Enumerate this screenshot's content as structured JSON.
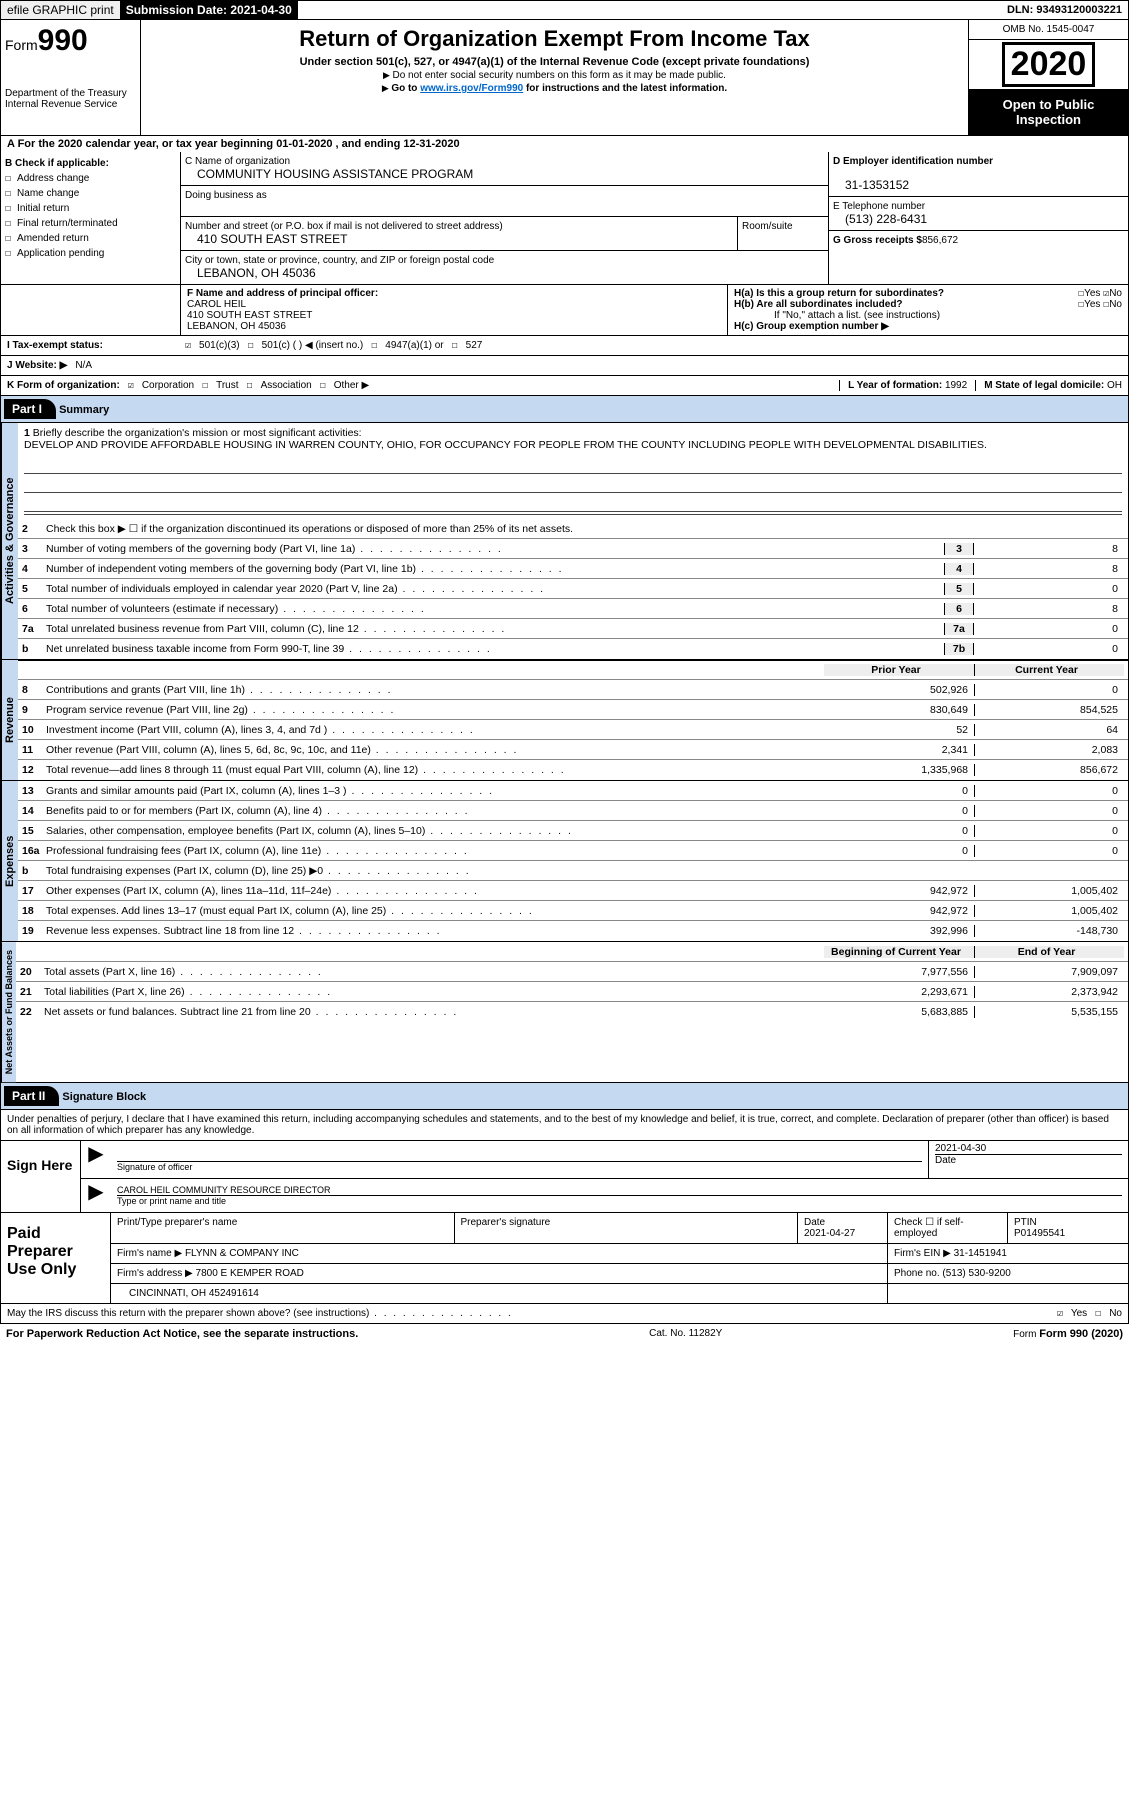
{
  "top": {
    "efile": "efile GRAPHIC print",
    "submission_btn": "Submission Date: 2021-04-30",
    "dln": "DLN: 93493120003221"
  },
  "header": {
    "form_prefix": "Form",
    "form_num": "990",
    "dept": "Department of the Treasury",
    "irs": "Internal Revenue Service",
    "title": "Return of Organization Exempt From Income Tax",
    "sub": "Under section 501(c), 527, or 4947(a)(1) of the Internal Revenue Code (except private foundations)",
    "note1": "Do not enter social security numbers on this form as it may be made public.",
    "note2_pre": "Go to ",
    "note2_link": "www.irs.gov/Form990",
    "note2_post": " for instructions and the latest information.",
    "omb": "OMB No. 1545-0047",
    "year": "2020",
    "open_pub": "Open to Public Inspection"
  },
  "period": "A For the 2020 calendar year, or tax year beginning 01-01-2020    , and ending 12-31-2020",
  "boxB": {
    "hdr": "B Check if applicable:",
    "opts": [
      "Address change",
      "Name change",
      "Initial return",
      "Final return/terminated",
      "Amended return",
      "Application pending"
    ]
  },
  "boxC": {
    "lbl_name": "C Name of organization",
    "org": "COMMUNITY HOUSING ASSISTANCE PROGRAM",
    "dba_lbl": "Doing business as",
    "dba": "",
    "addr_lbl": "Number and street (or P.O. box if mail is not delivered to street address)",
    "room_lbl": "Room/suite",
    "addr": "410 SOUTH EAST STREET",
    "city_lbl": "City or town, state or province, country, and ZIP or foreign postal code",
    "city": "LEBANON, OH  45036"
  },
  "boxD": {
    "lbl": "D Employer identification number",
    "ein": "31-1353152",
    "tel_lbl": "E Telephone number",
    "tel": "(513) 228-6431",
    "gross_lbl": "G Gross receipts $",
    "gross": "856,672"
  },
  "boxF": {
    "lbl": "F  Name and address of principal officer:",
    "name": "CAROL HEIL",
    "addr": "410 SOUTH EAST STREET",
    "city": "LEBANON, OH  45036"
  },
  "boxH": {
    "a": "H(a)  Is this a group return for subordinates?",
    "b": "H(b)  Are all subordinates included?",
    "b_note": "If \"No,\" attach a list. (see instructions)",
    "c": "H(c)  Group exemption number ▶",
    "yes": "Yes",
    "no": "No"
  },
  "tax_status": {
    "lbl": "I  Tax-exempt status:",
    "c3": "501(c)(3)",
    "c": "501(c) (  ) ◀ (insert no.)",
    "a1": "4947(a)(1) or",
    "s527": "527"
  },
  "website": {
    "lbl": "J  Website: ▶",
    "val": "N/A"
  },
  "korg": {
    "lbl": "K Form of organization:",
    "opts": [
      "Corporation",
      "Trust",
      "Association",
      "Other ▶"
    ],
    "L_lbl": "L Year of formation:",
    "L_val": "1992",
    "M_lbl": "M State of legal domicile:",
    "M_val": "OH"
  },
  "part1": {
    "hdr": "Part I",
    "title": "Summary",
    "l1": "Briefly describe the organization's mission or most significant activities:",
    "mission": "DEVELOP AND PROVIDE AFFORDABLE HOUSING IN WARREN COUNTY, OHIO, FOR OCCUPANCY FOR PEOPLE FROM THE COUNTY INCLUDING PEOPLE WITH DEVELOPMENTAL DISABILITIES.",
    "l2": "Check this box ▶ ☐  if the organization discontinued its operations or disposed of more than 25% of its net assets.",
    "tabs": {
      "act": "Activities & Governance",
      "rev": "Revenue",
      "exp": "Expenses",
      "net": "Net Assets or Fund Balances"
    },
    "prior": "Prior Year",
    "curr": "Current Year",
    "beg": "Beginning of Current Year",
    "end": "End of Year",
    "rows_gov": [
      {
        "n": "3",
        "t": "Number of voting members of the governing body (Part VI, line 1a)",
        "box": "3",
        "v": "8"
      },
      {
        "n": "4",
        "t": "Number of independent voting members of the governing body (Part VI, line 1b)",
        "box": "4",
        "v": "8"
      },
      {
        "n": "5",
        "t": "Total number of individuals employed in calendar year 2020 (Part V, line 2a)",
        "box": "5",
        "v": "0"
      },
      {
        "n": "6",
        "t": "Total number of volunteers (estimate if necessary)",
        "box": "6",
        "v": "8"
      },
      {
        "n": "7a",
        "t": "Total unrelated business revenue from Part VIII, column (C), line 12",
        "box": "7a",
        "v": "0"
      },
      {
        "n": "b",
        "t": "Net unrelated business taxable income from Form 990-T, line 39",
        "box": "7b",
        "v": "0"
      }
    ],
    "rows_rev": [
      {
        "n": "8",
        "t": "Contributions and grants (Part VIII, line 1h)",
        "p": "502,926",
        "c": "0"
      },
      {
        "n": "9",
        "t": "Program service revenue (Part VIII, line 2g)",
        "p": "830,649",
        "c": "854,525"
      },
      {
        "n": "10",
        "t": "Investment income (Part VIII, column (A), lines 3, 4, and 7d )",
        "p": "52",
        "c": "64"
      },
      {
        "n": "11",
        "t": "Other revenue (Part VIII, column (A), lines 5, 6d, 8c, 9c, 10c, and 11e)",
        "p": "2,341",
        "c": "2,083"
      },
      {
        "n": "12",
        "t": "Total revenue—add lines 8 through 11 (must equal Part VIII, column (A), line 12)",
        "p": "1,335,968",
        "c": "856,672"
      }
    ],
    "rows_exp": [
      {
        "n": "13",
        "t": "Grants and similar amounts paid (Part IX, column (A), lines 1–3 )",
        "p": "0",
        "c": "0"
      },
      {
        "n": "14",
        "t": "Benefits paid to or for members (Part IX, column (A), line 4)",
        "p": "0",
        "c": "0"
      },
      {
        "n": "15",
        "t": "Salaries, other compensation, employee benefits (Part IX, column (A), lines 5–10)",
        "p": "0",
        "c": "0"
      },
      {
        "n": "16a",
        "t": "Professional fundraising fees (Part IX, column (A), line 11e)",
        "p": "0",
        "c": "0"
      },
      {
        "n": "b",
        "t": "Total fundraising expenses (Part IX, column (D), line 25) ▶0",
        "p": "",
        "c": "",
        "shade": true
      },
      {
        "n": "17",
        "t": "Other expenses (Part IX, column (A), lines 11a–11d, 11f–24e)",
        "p": "942,972",
        "c": "1,005,402"
      },
      {
        "n": "18",
        "t": "Total expenses. Add lines 13–17 (must equal Part IX, column (A), line 25)",
        "p": "942,972",
        "c": "1,005,402"
      },
      {
        "n": "19",
        "t": "Revenue less expenses. Subtract line 18 from line 12",
        "p": "392,996",
        "c": "-148,730"
      }
    ],
    "rows_net": [
      {
        "n": "20",
        "t": "Total assets (Part X, line 16)",
        "p": "7,977,556",
        "c": "7,909,097"
      },
      {
        "n": "21",
        "t": "Total liabilities (Part X, line 26)",
        "p": "2,293,671",
        "c": "2,373,942"
      },
      {
        "n": "22",
        "t": "Net assets or fund balances. Subtract line 21 from line 20",
        "p": "5,683,885",
        "c": "5,535,155"
      }
    ]
  },
  "part2": {
    "hdr": "Part II",
    "title": "Signature Block",
    "intro": "Under penalties of perjury, I declare that I have examined this return, including accompanying schedules and statements, and to the best of my knowledge and belief, it is true, correct, and complete. Declaration of preparer (other than officer) is based on all information of which preparer has any knowledge.",
    "sign_here": "Sign Here",
    "sig_lbl": "Signature of officer",
    "date": "2021-04-30",
    "date_lbl": "Date",
    "typed": "CAROL HEIL COMMUNITY RESOURCE DIRECTOR",
    "typed_lbl": "Type or print name and title",
    "paid": "Paid Preparer Use Only",
    "prep_name_lbl": "Print/Type preparer's name",
    "prep_sig_lbl": "Preparer's signature",
    "prep_date_lbl": "Date",
    "prep_date": "2021-04-27",
    "check_lbl": "Check ☐ if self-employed",
    "ptin_lbl": "PTIN",
    "ptin": "P01495541",
    "firm_lbl": "Firm's name    ▶",
    "firm": "FLYNN & COMPANY INC",
    "firm_ein_lbl": "Firm's EIN ▶",
    "firm_ein": "31-1451941",
    "firm_addr_lbl": "Firm's address ▶",
    "firm_addr": "7800 E KEMPER ROAD",
    "firm_city": "CINCINNATI, OH  452491614",
    "phone_lbl": "Phone no.",
    "phone": "(513) 530-9200",
    "discuss": "May the IRS discuss this return with the preparer shown above? (see instructions)",
    "yes": "Yes",
    "no": "No"
  },
  "footer": {
    "pra": "For Paperwork Reduction Act Notice, see the separate instructions.",
    "cat": "Cat. No. 11282Y",
    "form": "Form 990 (2020)"
  }
}
